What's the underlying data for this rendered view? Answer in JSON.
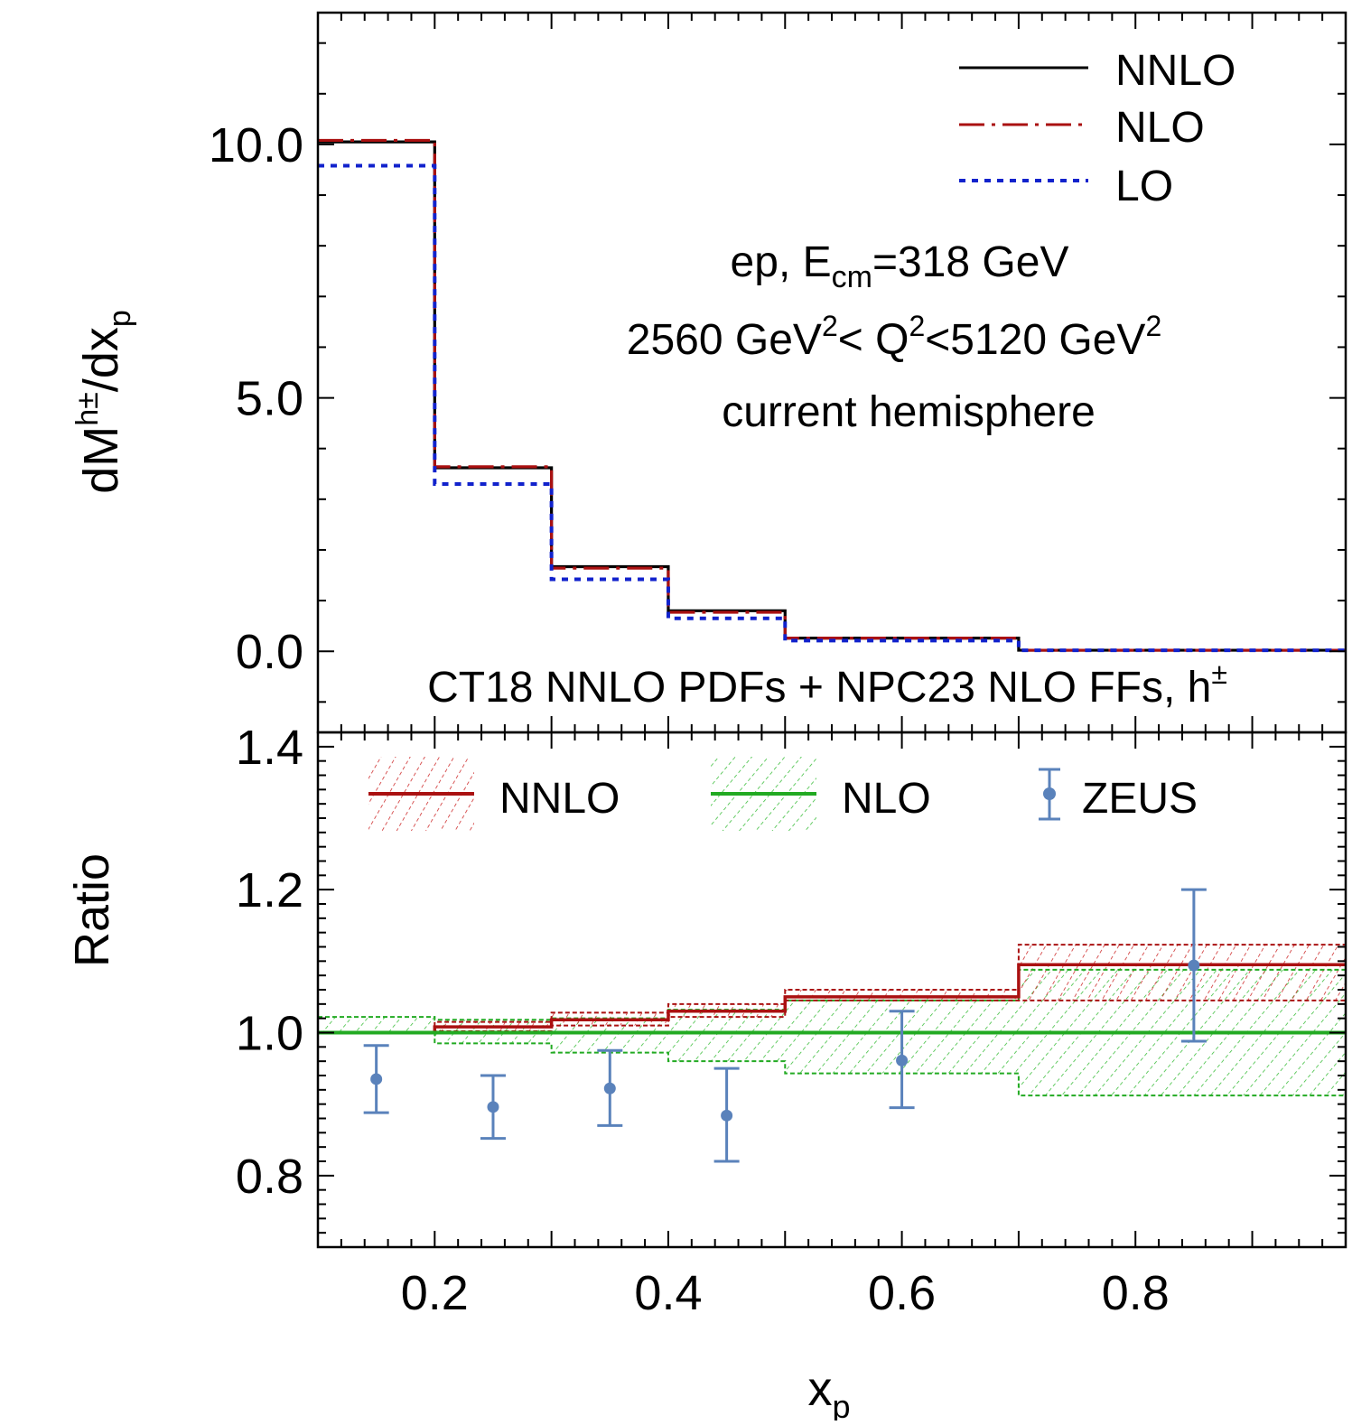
{
  "chart_data": [
    {
      "type": "line",
      "panel": "top",
      "ylabel": {
        "base": "dM",
        "sup": "h±",
        "mid": "/dx",
        "sub": "p"
      },
      "ylim": [
        -1.6,
        12.6
      ],
      "xlim": [
        0.1,
        0.98
      ],
      "yticks": [
        {
          "v": 0.0,
          "label": "0.0"
        },
        {
          "v": 5.0,
          "label": "5.0"
        },
        {
          "v": 10.0,
          "label": "10.0"
        }
      ],
      "bin_edges": [
        0.1,
        0.2,
        0.3,
        0.4,
        0.5,
        0.7,
        0.98
      ],
      "series": [
        {
          "name": "NNLO",
          "color": "#000000",
          "style": "solid",
          "values": [
            10.05,
            3.62,
            1.67,
            0.8,
            0.26,
            0.02
          ]
        },
        {
          "name": "NLO",
          "color": "#aa1111",
          "style": "dashdot",
          "values": [
            10.08,
            3.64,
            1.64,
            0.77,
            0.26,
            0.02
          ]
        },
        {
          "name": "LO",
          "color": "#1122cc",
          "style": "dotted",
          "values": [
            9.58,
            3.3,
            1.42,
            0.65,
            0.21,
            0.02
          ]
        }
      ],
      "annotations": {
        "line1_pre": "ep,  E",
        "line1_sub": "cm",
        "line1_post": "=318 GeV",
        "line2_a": "2560 GeV",
        "line2_sup1": "2",
        "line2_b": "< Q",
        "line2_sup2": "2",
        "line2_c": "<5120 GeV",
        "line2_sup3": "2",
        "line3": "current hemisphere",
        "bottom_text": "CT18 NNLO PDFs + NPC23 NLO FFs,  h",
        "bottom_sup": "±"
      }
    },
    {
      "type": "line",
      "panel": "bottom",
      "ylabel": "Ratio",
      "xlabel": {
        "base": "x",
        "sub": "p"
      },
      "ylim": [
        0.7,
        1.42
      ],
      "xlim": [
        0.1,
        0.98
      ],
      "yticks": [
        {
          "v": 0.8,
          "label": "0.8"
        },
        {
          "v": 1.0,
          "label": "1.0"
        },
        {
          "v": 1.2,
          "label": "1.2"
        },
        {
          "v": 1.4,
          "label": "1.4"
        }
      ],
      "xticks": [
        {
          "v": 0.2,
          "label": "0.2"
        },
        {
          "v": 0.4,
          "label": "0.4"
        },
        {
          "v": 0.6,
          "label": "0.6"
        },
        {
          "v": 0.8,
          "label": "0.8"
        }
      ],
      "bin_edges": [
        0.1,
        0.2,
        0.3,
        0.4,
        0.5,
        0.7,
        0.98
      ],
      "series": [
        {
          "name": "NNLO",
          "color": "#aa1111",
          "central": [
            1.0,
            1.008,
            1.018,
            1.03,
            1.05,
            1.095
          ],
          "upper": [
            1.0,
            1.015,
            1.028,
            1.04,
            1.06,
            1.123
          ],
          "lower": [
            1.0,
            1.002,
            1.01,
            1.022,
            1.045,
            1.045
          ]
        },
        {
          "name": "NLO",
          "color": "#22aa22",
          "central": [
            1.0,
            1.0,
            1.0,
            1.0,
            1.0,
            1.0
          ],
          "upper": [
            1.022,
            1.018,
            1.02,
            1.032,
            1.045,
            1.088
          ],
          "lower": [
            1.0,
            0.985,
            0.972,
            0.96,
            0.943,
            0.912
          ]
        },
        {
          "name": "ZEUS",
          "color": "#5a82bb",
          "points": [
            {
              "x": 0.15,
              "y": 0.935,
              "lo": 0.888,
              "hi": 0.982
            },
            {
              "x": 0.25,
              "y": 0.896,
              "lo": 0.852,
              "hi": 0.94
            },
            {
              "x": 0.35,
              "y": 0.922,
              "lo": 0.87,
              "hi": 0.975
            },
            {
              "x": 0.45,
              "y": 0.884,
              "lo": 0.82,
              "hi": 0.95
            },
            {
              "x": 0.6,
              "y": 0.961,
              "lo": 0.895,
              "hi": 1.03
            },
            {
              "x": 0.85,
              "y": 1.094,
              "lo": 0.988,
              "hi": 1.2
            }
          ]
        }
      ]
    }
  ]
}
